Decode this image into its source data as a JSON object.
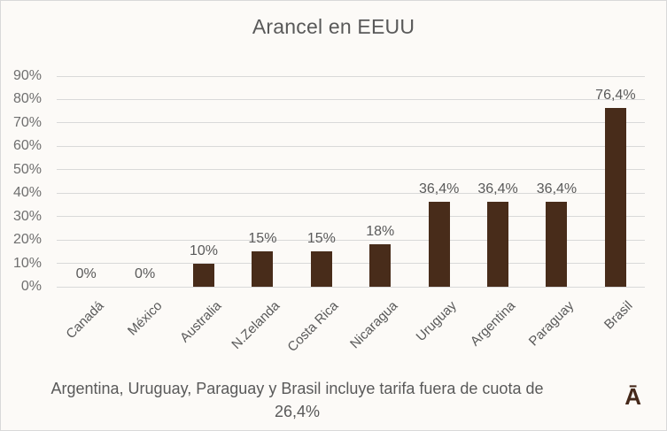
{
  "chart_data": {
    "type": "bar",
    "title": "Arancel en EEUU",
    "categories": [
      "Canadá",
      "México",
      "Australia",
      "N.Zelanda",
      "Costa Rica",
      "Nicaragua",
      "Uruguay",
      "Argentina",
      "Paraguay",
      "Brasil"
    ],
    "values": [
      0,
      0,
      10,
      15,
      15,
      18,
      36.4,
      36.4,
      36.4,
      76.4
    ],
    "value_labels": [
      "0%",
      "0%",
      "10%",
      "15%",
      "15%",
      "18%",
      "36,4%",
      "36,4%",
      "36,4%",
      "76,4%"
    ],
    "xlabel": "",
    "ylabel": "",
    "ylim": [
      0,
      90
    ],
    "ytick_step": 10,
    "ytick_labels": [
      "0%",
      "10%",
      "20%",
      "30%",
      "40%",
      "50%",
      "60%",
      "70%",
      "80%",
      "90%"
    ],
    "grid": true,
    "legend": false,
    "bar_color": "#482c1a",
    "gridline_color": "#d9d9d9",
    "label_color": "#595959",
    "footnote_lines": [
      "Argentina, Uruguay, Paraguay y Brasil incluye tarifa fuera de cuota de",
      "26,4%"
    ]
  },
  "branding": {
    "logo": "Ā"
  }
}
